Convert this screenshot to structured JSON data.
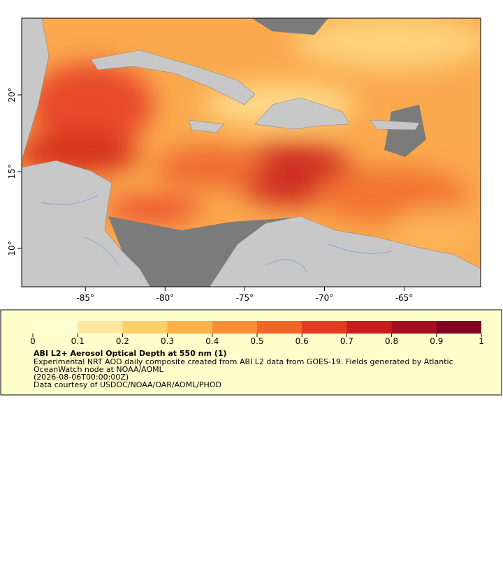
{
  "map": {
    "xlim": [
      -89,
      -60.2
    ],
    "ylim": [
      7.5,
      25
    ],
    "xticks": [
      {
        "value": -85,
        "label": "-85°"
      },
      {
        "value": -80,
        "label": "-80°"
      },
      {
        "value": -75,
        "label": "-75°"
      },
      {
        "value": -70,
        "label": "-70°"
      },
      {
        "value": -65,
        "label": "-65°"
      }
    ],
    "yticks": [
      {
        "value": 10,
        "label": "10°"
      },
      {
        "value": 15,
        "label": "15°"
      },
      {
        "value": 20,
        "label": "20°"
      }
    ]
  },
  "colorbar": {
    "lim": [
      0,
      1
    ],
    "ticks": [
      0,
      0.1,
      0.2,
      0.3,
      0.4,
      0.5,
      0.6,
      0.7,
      0.8,
      0.9,
      1
    ],
    "colors": [
      "#ffffd4",
      "#fee8a0",
      "#fed06a",
      "#fdb14a",
      "#fb8c38",
      "#f5622a",
      "#e53a22",
      "#cc1a1e",
      "#a80d22",
      "#800026"
    ]
  },
  "legend": {
    "title": "ABI L2+ Aerosol Optical Depth at 550 nm (1)",
    "lines": [
      "Experimental NRT AOD daily composite created from ABI L2 data from GOES-19. Fields generated by Atlantic",
      "OceanWatch node at NOAA/AOML",
      "(2026-08-06T00:00:00Z)",
      "Data courtesy of USDOC/NOAA/OAR/AOML/PHOD"
    ]
  }
}
